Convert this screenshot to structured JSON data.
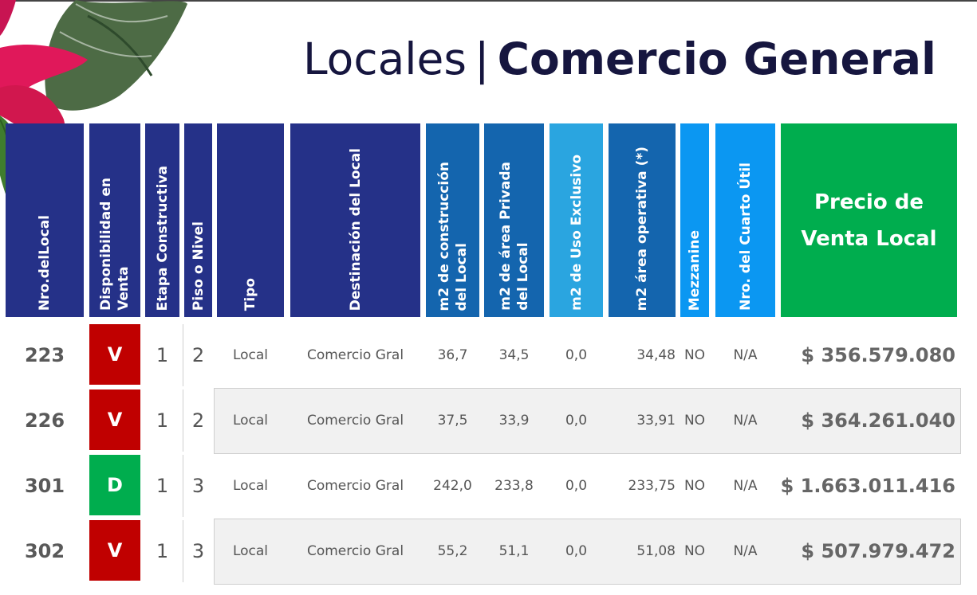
{
  "title": {
    "light": "Locales",
    "separator": "|",
    "bold": "Comercio General"
  },
  "colors": {
    "navy": "#253188",
    "blue": "#1465ae",
    "light_blue": "#2aa5e0",
    "cyan": "#0b97f2",
    "green": "#00ad4e",
    "sold_red": "#c00000",
    "available_green": "#00ad4e"
  },
  "headers": {
    "nro_local": "Nro.delLocal",
    "disponibilidad_1": "Disponibilidad en",
    "disponibilidad_2": "Venta",
    "etapa": "Etapa Constructiva",
    "piso": "Piso o Nivel",
    "tipo": "Tipo",
    "destinacion": "Destinación del Local",
    "m2_construccion_1": "m2 de construcción",
    "m2_construccion_2": "del Local",
    "m2_privada_1": "m2 de área Privada",
    "m2_privada_2": "del Local",
    "m2_uso_exclusivo": "m2 de Uso Exclusivo",
    "m2_operativa": "m2 área operativa (*)",
    "mezzanine": "Mezzanine",
    "cuarto_util": "Nro. del Cuarto Útil",
    "precio": "Precio de\nVenta  Local"
  },
  "rows": [
    {
      "nro": "223",
      "disponibilidad": "V",
      "etapa": "1",
      "piso": "2",
      "tipo": "Local",
      "destinacion": "Comercio Gral",
      "m2_construccion": "36,7",
      "m2_privada": "34,5",
      "m2_uso_exclusivo": "0,0",
      "m2_operativa": "34,48",
      "mezzanine": "NO",
      "cuarto_util": "N/A",
      "precio": "$ 356.579.080"
    },
    {
      "nro": "226",
      "disponibilidad": "V",
      "etapa": "1",
      "piso": "2",
      "tipo": "Local",
      "destinacion": "Comercio Gral",
      "m2_construccion": "37,5",
      "m2_privada": "33,9",
      "m2_uso_exclusivo": "0,0",
      "m2_operativa": "33,91",
      "mezzanine": "NO",
      "cuarto_util": "N/A",
      "precio": "$ 364.261.040"
    },
    {
      "nro": "301",
      "disponibilidad": "D",
      "etapa": "1",
      "piso": "3",
      "tipo": "Local",
      "destinacion": "Comercio Gral",
      "m2_construccion": "242,0",
      "m2_privada": "233,8",
      "m2_uso_exclusivo": "0,0",
      "m2_operativa": "233,75",
      "mezzanine": "NO",
      "cuarto_util": "N/A",
      "precio": "$ 1.663.011.416"
    },
    {
      "nro": "302",
      "disponibilidad": "V",
      "etapa": "1",
      "piso": "3",
      "tipo": "Local",
      "destinacion": "Comercio Gral",
      "m2_construccion": "55,2",
      "m2_privada": "51,1",
      "m2_uso_exclusivo": "0,0",
      "m2_operativa": "51,08",
      "mezzanine": "NO",
      "cuarto_util": "N/A",
      "precio": "$ 507.979.472"
    }
  ]
}
